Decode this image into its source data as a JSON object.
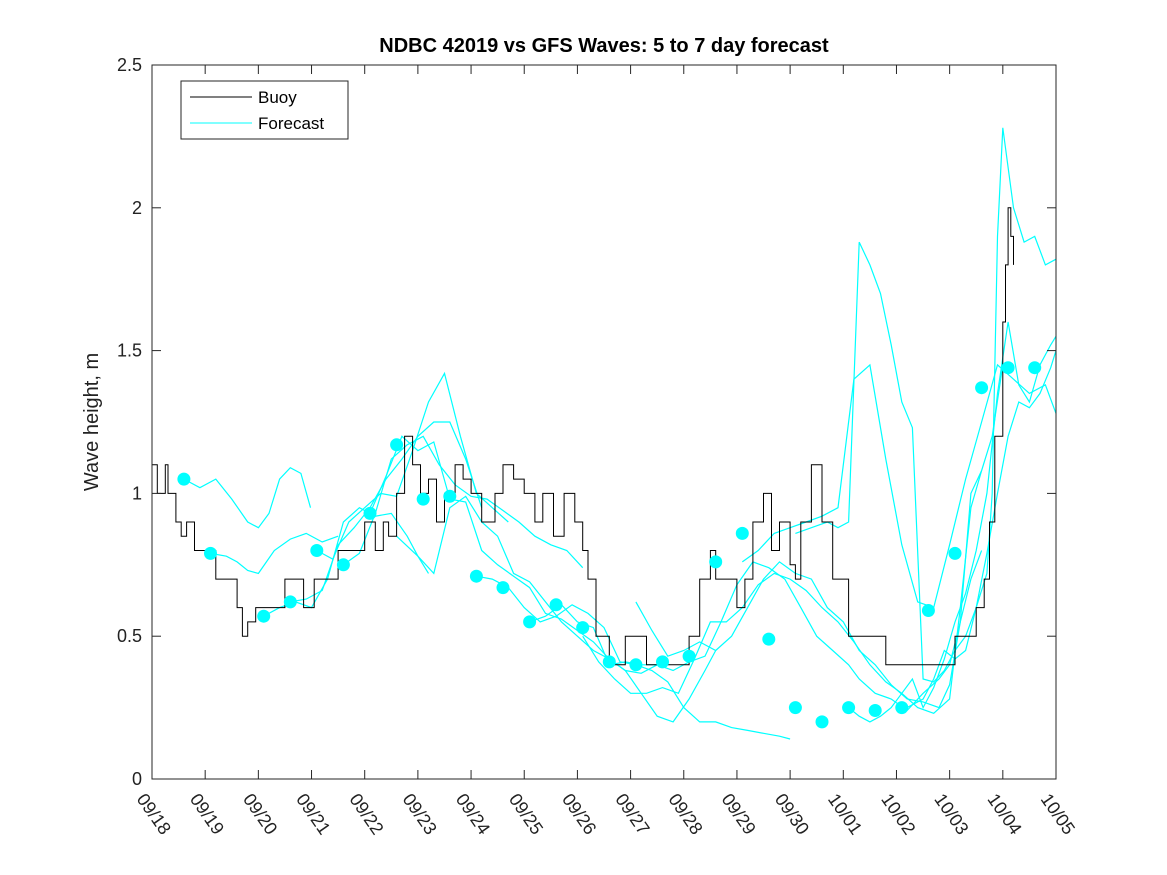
{
  "chart_data": {
    "type": "line",
    "title": "NDBC 42019 vs GFS Waves: 5 to 7 day forecast",
    "xlabel": "",
    "ylabel": "Wave height, m",
    "xlim": [
      0,
      17
    ],
    "ylim": [
      0,
      2.5
    ],
    "yticks": [
      0,
      0.5,
      1,
      1.5,
      2,
      2.5
    ],
    "ytick_labels": [
      "0",
      "0.5",
      "1",
      "1.5",
      "2",
      "2.5"
    ],
    "xticks": [
      0,
      1,
      2,
      3,
      4,
      5,
      6,
      7,
      8,
      9,
      10,
      11,
      12,
      13,
      14,
      15,
      16,
      17
    ],
    "xtick_labels": [
      "09/18",
      "09/19",
      "09/20",
      "09/21",
      "09/22",
      "09/23",
      "09/24",
      "09/25",
      "09/26",
      "09/27",
      "09/28",
      "09/29",
      "09/30",
      "10/01",
      "10/02",
      "10/03",
      "10/04",
      "10/05"
    ],
    "legend": {
      "placement": "top-left",
      "entries": [
        "Buoy",
        "Forecast"
      ]
    },
    "colors": {
      "buoy": "#000000",
      "forecast": "#00ffff",
      "marker": "#00ffff"
    },
    "buoy": {
      "name": "Buoy",
      "x": [
        0,
        0.1,
        0.25,
        0.3,
        0.45,
        0.55,
        0.65,
        0.8,
        1.0,
        1.2,
        1.4,
        1.6,
        1.7,
        1.8,
        1.95,
        2.2,
        2.5,
        2.85,
        3.05,
        3.2,
        3.5,
        3.65,
        3.8,
        4.0,
        4.2,
        4.35,
        4.45,
        4.6,
        4.75,
        4.9,
        5.05,
        5.2,
        5.35,
        5.5,
        5.7,
        5.85,
        6.0,
        6.2,
        6.45,
        6.6,
        6.8,
        7.0,
        7.2,
        7.35,
        7.55,
        7.75,
        7.95,
        8.1,
        8.2,
        8.35,
        8.6,
        8.9,
        9.1,
        9.3,
        9.6,
        9.9,
        10.1,
        10.3,
        10.5,
        10.6,
        10.85,
        11.0,
        11.15,
        11.3,
        11.5,
        11.65,
        11.8,
        12.0,
        12.1,
        12.2,
        12.4,
        12.6,
        12.8,
        13.1,
        13.4,
        13.8,
        14.1,
        14.4,
        14.7,
        14.9,
        15.1,
        15.3,
        15.5,
        15.65,
        15.75,
        15.85,
        16.0,
        16.05,
        16.1,
        16.15,
        16.2
      ],
      "y": [
        1.1,
        1.0,
        1.1,
        1.0,
        0.9,
        0.85,
        0.9,
        0.8,
        0.8,
        0.7,
        0.7,
        0.6,
        0.5,
        0.55,
        0.6,
        0.6,
        0.7,
        0.6,
        0.7,
        0.7,
        0.8,
        0.8,
        0.8,
        0.9,
        0.8,
        0.9,
        0.85,
        1.0,
        1.2,
        1.1,
        1.0,
        1.05,
        0.9,
        1.0,
        1.1,
        1.05,
        1.0,
        0.9,
        1.0,
        1.1,
        1.05,
        1.0,
        0.9,
        1.0,
        0.85,
        1.0,
        0.9,
        0.8,
        0.7,
        0.5,
        0.4,
        0.5,
        0.5,
        0.4,
        0.4,
        0.4,
        0.5,
        0.7,
        0.8,
        0.7,
        0.7,
        0.6,
        0.7,
        0.9,
        1.0,
        0.8,
        0.9,
        0.75,
        0.7,
        0.9,
        1.1,
        0.9,
        0.7,
        0.5,
        0.5,
        0.4,
        0.4,
        0.4,
        0.4,
        0.4,
        0.5,
        0.5,
        0.6,
        0.7,
        0.9,
        1.2,
        1.6,
        1.8,
        2.0,
        1.9,
        1.8
      ]
    },
    "forecast_series": [
      {
        "name": "Forecast",
        "x": [
          0.6,
          0.9,
          1.2,
          1.5,
          1.8,
          2.0,
          2.2,
          2.4,
          2.6,
          2.8,
          2.98
        ],
        "y": [
          1.05,
          1.02,
          1.05,
          0.98,
          0.9,
          0.88,
          0.93,
          1.05,
          1.09,
          1.07,
          0.95
        ]
      },
      {
        "name": "Forecast",
        "x": [
          1.1,
          1.4,
          1.6,
          1.8,
          2.0,
          2.3,
          2.6,
          2.9,
          3.2,
          3.5
        ],
        "y": [
          0.79,
          0.78,
          0.76,
          0.73,
          0.72,
          0.8,
          0.84,
          0.86,
          0.83,
          0.85
        ]
      },
      {
        "name": "Forecast",
        "x": [
          2.1,
          2.4,
          2.7,
          3.0,
          3.3,
          3.6,
          3.9,
          4.2,
          4.5,
          4.8,
          5.0,
          5.2
        ],
        "y": [
          0.57,
          0.6,
          0.62,
          0.6,
          0.7,
          0.9,
          0.95,
          0.92,
          0.93,
          0.85,
          0.78,
          0.72
        ]
      },
      {
        "name": "Forecast",
        "x": [
          2.6,
          2.9,
          3.2,
          3.5,
          3.8,
          4.1,
          4.4,
          4.7,
          5.0,
          5.3,
          5.6,
          5.9,
          6.2
        ],
        "y": [
          0.62,
          0.63,
          0.66,
          0.82,
          0.88,
          0.95,
          1.05,
          1.12,
          1.2,
          1.25,
          1.25,
          1.12,
          0.95
        ]
      },
      {
        "name": "Forecast",
        "x": [
          3.1,
          3.4,
          3.7,
          4.0,
          4.3,
          4.6,
          4.9,
          5.2,
          5.5,
          5.8,
          6.1,
          6.4,
          6.7
        ],
        "y": [
          0.8,
          0.77,
          0.9,
          0.95,
          1.0,
          0.99,
          1.15,
          1.32,
          1.42,
          1.2,
          1.0,
          0.95,
          0.9
        ]
      },
      {
        "name": "Forecast",
        "x": [
          3.6,
          3.9,
          4.2,
          4.5,
          4.8,
          5.1,
          5.4,
          5.7,
          6.0,
          6.3,
          6.6,
          6.9,
          7.2,
          7.5,
          7.8,
          8.1
        ],
        "y": [
          0.75,
          0.79,
          0.93,
          1.12,
          1.17,
          1.2,
          1.1,
          1.03,
          0.99,
          0.98,
          0.94,
          0.9,
          0.85,
          0.82,
          0.8,
          0.74
        ]
      },
      {
        "name": "Forecast",
        "x": [
          4.1,
          4.4,
          4.7,
          5.0,
          5.3,
          5.6,
          5.9,
          6.2,
          6.5,
          6.8,
          7.1,
          7.4,
          7.7,
          8.0,
          8.3,
          8.6,
          8.9,
          9.2,
          9.5
        ],
        "y": [
          0.93,
          1.06,
          1.2,
          1.15,
          1.18,
          0.98,
          0.97,
          0.8,
          0.75,
          0.71,
          0.67,
          0.58,
          0.56,
          0.52,
          0.48,
          0.42,
          0.38,
          0.37,
          0.4
        ]
      },
      {
        "name": "Forecast",
        "x": [
          4.6,
          5.0,
          5.3,
          5.6,
          5.9,
          6.2,
          6.5,
          6.8,
          7.1,
          7.4,
          7.7,
          8.0,
          8.3,
          8.6,
          8.9,
          9.2,
          9.5,
          9.8,
          10.1,
          10.4,
          10.6
        ],
        "y": [
          0.85,
          0.78,
          0.72,
          0.95,
          0.99,
          0.9,
          0.85,
          0.72,
          0.69,
          0.62,
          0.55,
          0.5,
          0.45,
          0.42,
          0.38,
          0.3,
          0.22,
          0.2,
          0.28,
          0.38,
          0.45
        ]
      },
      {
        "name": "Forecast",
        "x": [
          6.1,
          6.4,
          6.7,
          7.0,
          7.3,
          7.6,
          7.9,
          8.2,
          8.5,
          8.8,
          9.1,
          9.4,
          9.7,
          10.0,
          10.3,
          10.6,
          10.9,
          11.2,
          11.5,
          11.8,
          12.0
        ],
        "y": [
          0.71,
          0.7,
          0.67,
          0.6,
          0.55,
          0.57,
          0.61,
          0.58,
          0.53,
          0.41,
          0.4,
          0.38,
          0.34,
          0.25,
          0.2,
          0.2,
          0.18,
          0.17,
          0.16,
          0.15,
          0.14
        ]
      },
      {
        "name": "Forecast",
        "x": [
          7.1,
          7.4,
          7.7,
          8.0,
          8.3,
          8.6,
          8.9,
          9.2,
          9.5,
          9.8,
          10.1,
          10.4,
          10.7,
          11.0,
          11.3,
          11.6,
          11.9,
          12.2,
          12.5,
          12.8,
          13.1,
          13.3,
          13.6,
          13.9,
          14.2,
          14.5,
          14.8,
          15.0,
          15.2,
          15.4,
          15.6
        ],
        "y": [
          0.55,
          0.57,
          0.61,
          0.55,
          0.53,
          0.4,
          0.41,
          0.4,
          0.4,
          0.38,
          0.41,
          0.43,
          0.55,
          0.68,
          0.76,
          0.74,
          0.7,
          0.6,
          0.5,
          0.45,
          0.4,
          0.35,
          0.3,
          0.28,
          0.24,
          0.3,
          0.35,
          0.4,
          0.55,
          0.7,
          0.8
        ]
      },
      {
        "name": "Forecast",
        "x": [
          8.1,
          8.4,
          8.7,
          9.0,
          9.3,
          9.6,
          9.9,
          10.2,
          10.5,
          10.8,
          11.1,
          11.4,
          11.7,
          12.0,
          12.3,
          12.6,
          12.9,
          13.2,
          13.5,
          13.8,
          14.1,
          14.4,
          14.7,
          15.0,
          15.2,
          15.4,
          15.6
        ],
        "y": [
          0.5,
          0.41,
          0.35,
          0.3,
          0.3,
          0.32,
          0.3,
          0.42,
          0.55,
          0.55,
          0.6,
          0.68,
          0.72,
          0.7,
          0.66,
          0.6,
          0.55,
          0.48,
          0.4,
          0.34,
          0.3,
          0.25,
          0.23,
          0.28,
          0.6,
          0.95,
          1.08
        ]
      },
      {
        "name": "Forecast",
        "x": [
          9.1,
          9.4,
          9.7,
          10.0,
          10.3,
          10.6,
          10.9,
          11.2,
          11.5,
          11.8,
          12.1,
          12.4,
          12.7,
          13.0,
          13.3,
          13.6,
          13.9,
          14.2,
          14.5,
          14.8,
          15.0,
          15.2,
          15.4,
          15.6,
          15.8,
          16.0
        ],
        "y": [
          0.62,
          0.52,
          0.43,
          0.45,
          0.48,
          0.45,
          0.5,
          0.6,
          0.7,
          0.76,
          0.72,
          0.7,
          0.6,
          0.55,
          0.45,
          0.4,
          0.33,
          0.28,
          0.27,
          0.25,
          0.33,
          0.55,
          1.0,
          1.08,
          1.2,
          1.45
        ]
      },
      {
        "name": "Forecast",
        "x": [
          11.1,
          11.4,
          11.7,
          12.0,
          12.3,
          12.6,
          12.9,
          13.2,
          13.5,
          13.8,
          14.1,
          14.4,
          14.7,
          15.0,
          15.3,
          15.6,
          15.9,
          16.2,
          16.5,
          16.8,
          17.0
        ],
        "y": [
          0.76,
          0.8,
          0.86,
          0.88,
          0.9,
          0.92,
          0.95,
          1.4,
          1.45,
          1.12,
          0.82,
          0.62,
          0.6,
          0.82,
          1.05,
          1.25,
          1.45,
          1.4,
          1.35,
          1.38,
          1.28
        ]
      },
      {
        "name": "Forecast",
        "x": [
          12.1,
          12.4,
          12.7,
          12.9,
          13.1,
          13.3,
          13.5,
          13.7,
          13.9,
          14.1,
          14.3,
          14.5,
          14.7,
          14.9,
          15.1,
          15.3,
          15.5,
          15.7,
          15.8,
          15.9,
          16.0,
          16.2,
          16.4,
          16.6,
          16.8,
          17.0
        ],
        "y": [
          0.86,
          0.88,
          0.9,
          0.88,
          0.9,
          1.88,
          1.8,
          1.7,
          1.52,
          1.32,
          1.23,
          0.35,
          0.34,
          0.38,
          0.45,
          0.5,
          0.6,
          0.72,
          1.0,
          1.9,
          2.28,
          2.0,
          1.88,
          1.9,
          1.8,
          1.82
        ]
      },
      {
        "name": "Forecast",
        "x": [
          13.1,
          13.3,
          13.5,
          13.7,
          13.9,
          14.1,
          14.3,
          14.5,
          14.7,
          14.9,
          15.1,
          15.3,
          15.5,
          15.7,
          15.9,
          16.1,
          16.3,
          16.5,
          16.7,
          16.9,
          17.0
        ],
        "y": [
          0.25,
          0.22,
          0.2,
          0.22,
          0.25,
          0.3,
          0.35,
          0.25,
          0.32,
          0.42,
          0.55,
          0.65,
          0.8,
          1.0,
          1.35,
          1.6,
          1.38,
          1.32,
          1.45,
          1.52,
          1.55
        ]
      },
      {
        "name": "Forecast",
        "x": [
          14.1,
          14.3,
          14.5,
          14.7,
          14.9,
          15.1,
          15.3,
          15.5,
          15.7,
          15.9,
          16.1,
          16.3,
          16.5,
          16.7,
          16.9,
          17.0
        ],
        "y": [
          0.24,
          0.26,
          0.28,
          0.35,
          0.45,
          0.42,
          0.45,
          0.6,
          0.79,
          1.0,
          1.2,
          1.32,
          1.3,
          1.35,
          1.44,
          1.5
        ]
      }
    ],
    "markers": {
      "name": "Forecast points",
      "x": [
        0.6,
        1.1,
        2.1,
        2.6,
        3.1,
        3.6,
        4.1,
        4.6,
        5.1,
        5.6,
        6.1,
        6.6,
        7.1,
        7.6,
        8.1,
        8.6,
        9.1,
        9.6,
        10.1,
        10.6,
        11.1,
        11.6,
        12.1,
        12.6,
        13.1,
        13.6,
        14.1,
        14.6,
        15.1,
        15.6,
        16.1,
        16.6
      ],
      "y": [
        1.05,
        0.79,
        0.57,
        0.62,
        0.8,
        0.75,
        0.93,
        1.17,
        0.98,
        0.99,
        0.71,
        0.67,
        0.55,
        0.61,
        0.53,
        0.41,
        0.4,
        0.41,
        0.43,
        0.76,
        0.86,
        0.49,
        0.25,
        0.2,
        0.25,
        0.24,
        0.25,
        0.59,
        0.79,
        1.37,
        1.44,
        1.44
      ]
    }
  }
}
